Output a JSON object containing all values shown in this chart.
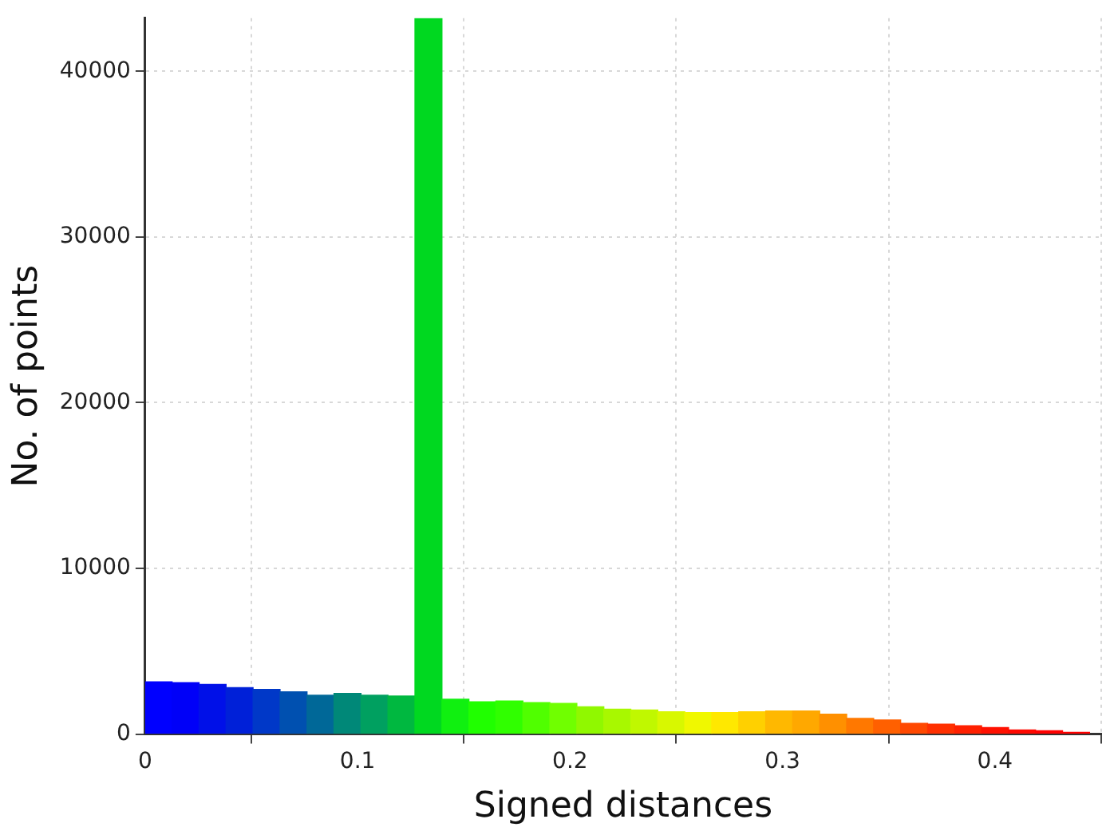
{
  "chart_data": {
    "type": "histogram",
    "xlabel": "Signed distances",
    "ylabel": "No. of points",
    "bins": [
      0,
      0.0127,
      0.0254,
      0.0381,
      0.0508,
      0.0635,
      0.0762,
      0.0889,
      0.1016,
      0.1143,
      0.127,
      0.1397,
      0.1524,
      0.1651,
      0.1778,
      0.1905,
      0.2032,
      0.2159,
      0.2286,
      0.2413,
      0.254,
      0.2667,
      0.2794,
      0.2921,
      0.3048,
      0.3175,
      0.3302,
      0.3429,
      0.3556,
      0.3683,
      0.381,
      0.3937,
      0.4064,
      0.4191,
      0.4318,
      0.4445
    ],
    "values": [
      3150,
      3100,
      3000,
      2800,
      2700,
      2550,
      2350,
      2450,
      2350,
      2300,
      43200,
      2100,
      1950,
      2000,
      1900,
      1850,
      1650,
      1500,
      1450,
      1350,
      1300,
      1300,
      1350,
      1400,
      1400,
      1200,
      950,
      850,
      650,
      600,
      500,
      400,
      250,
      200,
      100
    ],
    "colors": [
      "#0000ff",
      "#0000f8",
      "#0010e8",
      "#0020d8",
      "#0038c8",
      "#0050b0",
      "#006898",
      "#008878",
      "#00a060",
      "#00b840",
      "#00d820",
      "#10f010",
      "#20ff00",
      "#30ff00",
      "#50ff00",
      "#70ff00",
      "#90f800",
      "#a8f800",
      "#c0f800",
      "#d8f800",
      "#f0f800",
      "#ffe800",
      "#ffd000",
      "#ffb800",
      "#ffa800",
      "#ff9000",
      "#ff7800",
      "#ff6000",
      "#ff4800",
      "#ff3000",
      "#ff2000",
      "#ff1000",
      "#ff0800",
      "#ff0000",
      "#ff0000"
    ],
    "xlim": [
      0,
      0.45
    ],
    "xticks": [
      0,
      0.1,
      0.2,
      0.3,
      0.4
    ],
    "ylim": [
      0,
      43200
    ],
    "yticks": [
      0,
      10000,
      20000,
      30000,
      40000
    ],
    "grid": true
  }
}
